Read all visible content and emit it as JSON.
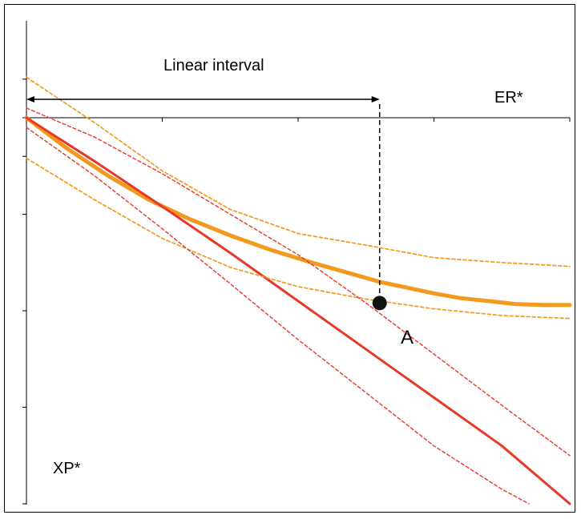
{
  "chart_data": {
    "type": "line",
    "title": "",
    "xlabel": "ER*",
    "ylabel": "XP*",
    "xlim": [
      0,
      40
    ],
    "ylim": [
      -4,
      0
    ],
    "grid": false,
    "legend": "none",
    "annotations": {
      "interval_label": "Linear interval",
      "point_label": "A",
      "point": {
        "x": 26,
        "y": -1.92
      },
      "interval": [
        0,
        26
      ]
    },
    "colors": {
      "orange": "#f39a1e",
      "red": "#e8382a",
      "black": "#000000"
    },
    "series": [
      {
        "style": "orange-solid",
        "x": [
          0,
          3,
          6,
          9,
          12,
          15,
          18,
          21,
          24,
          26,
          28,
          30,
          32,
          34,
          36,
          38,
          40
        ],
        "y": [
          0,
          -0.32,
          -0.6,
          -0.85,
          -1.05,
          -1.22,
          -1.37,
          -1.5,
          -1.62,
          -1.7,
          -1.76,
          -1.82,
          -1.87,
          -1.9,
          -1.93,
          -1.94,
          -1.94
        ]
      },
      {
        "style": "red-solid",
        "x": [
          0,
          5,
          10,
          15,
          20,
          25,
          30,
          35,
          40
        ],
        "y": [
          0,
          -0.45,
          -0.92,
          -1.4,
          -1.9,
          -2.4,
          -2.9,
          -3.4,
          -4.0
        ]
      },
      {
        "style": "orange-dotted",
        "x": [
          0,
          5,
          10,
          15,
          20,
          25,
          30,
          35,
          40
        ],
        "y": [
          0.42,
          -0.05,
          -0.55,
          -0.95,
          -1.2,
          -1.32,
          -1.45,
          -1.5,
          -1.54
        ]
      },
      {
        "style": "orange-dotted",
        "x": [
          0,
          5,
          10,
          15,
          20,
          25,
          30,
          35,
          40
        ],
        "y": [
          -0.42,
          -0.85,
          -1.25,
          -1.55,
          -1.75,
          -1.88,
          -1.98,
          -2.05,
          -2.08
        ]
      },
      {
        "style": "red-dotted",
        "x": [
          0,
          5,
          10,
          15,
          20,
          25,
          30,
          35,
          40
        ],
        "y": [
          0.1,
          -0.2,
          -0.58,
          -1.0,
          -1.42,
          -1.92,
          -2.45,
          -2.98,
          -3.5
        ]
      },
      {
        "style": "red-dotted",
        "x": [
          0,
          5,
          10,
          15,
          20,
          25,
          30,
          35,
          37
        ],
        "y": [
          -0.1,
          -0.6,
          -1.15,
          -1.72,
          -2.3,
          -2.85,
          -3.4,
          -3.85,
          -4.0
        ]
      }
    ]
  }
}
